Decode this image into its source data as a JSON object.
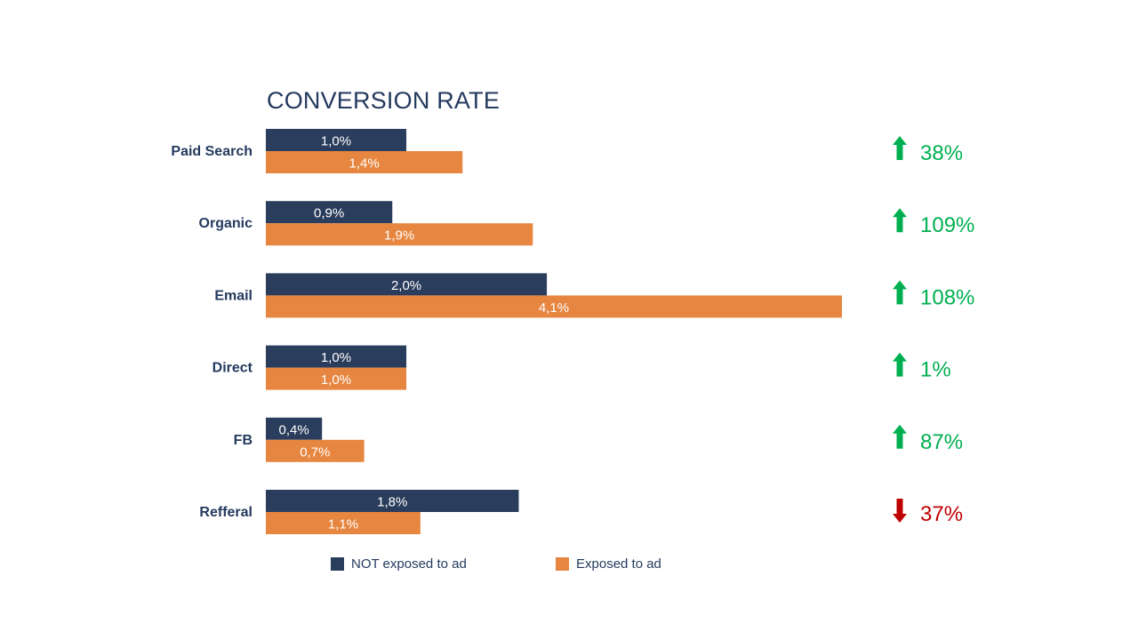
{
  "chart_data": {
    "type": "bar",
    "orientation": "horizontal",
    "title": "CONVERSION RATE",
    "categories": [
      "Paid Search",
      "Organic",
      "Email",
      "Direct",
      "FB",
      "Refferal"
    ],
    "series": [
      {
        "name": "NOT exposed to ad",
        "color": "#2b3d5d",
        "values": [
          1.0,
          0.9,
          2.0,
          1.0,
          0.4,
          1.8
        ],
        "labels": [
          "1,0%",
          "0,9%",
          "2,0%",
          "1,0%",
          "0,4%",
          "1,8%"
        ]
      },
      {
        "name": "Exposed to ad",
        "color": "#e68640",
        "values": [
          1.4,
          1.9,
          4.1,
          1.0,
          0.7,
          1.1
        ],
        "labels": [
          "1,4%",
          "1,9%",
          "4,1%",
          "1,0%",
          "0,7%",
          "1,1%"
        ]
      }
    ],
    "changes": [
      {
        "text": "38%",
        "direction": "up"
      },
      {
        "text": "109%",
        "direction": "up"
      },
      {
        "text": "108%",
        "direction": "up"
      },
      {
        "text": "1%",
        "direction": "up"
      },
      {
        "text": "87%",
        "direction": "up"
      },
      {
        "text": "37%",
        "direction": "down"
      }
    ],
    "up_color": "#00b050",
    "down_color": "#c00000",
    "xlim": [
      0,
      4.1
    ],
    "legend": "bottom",
    "grid": false
  }
}
